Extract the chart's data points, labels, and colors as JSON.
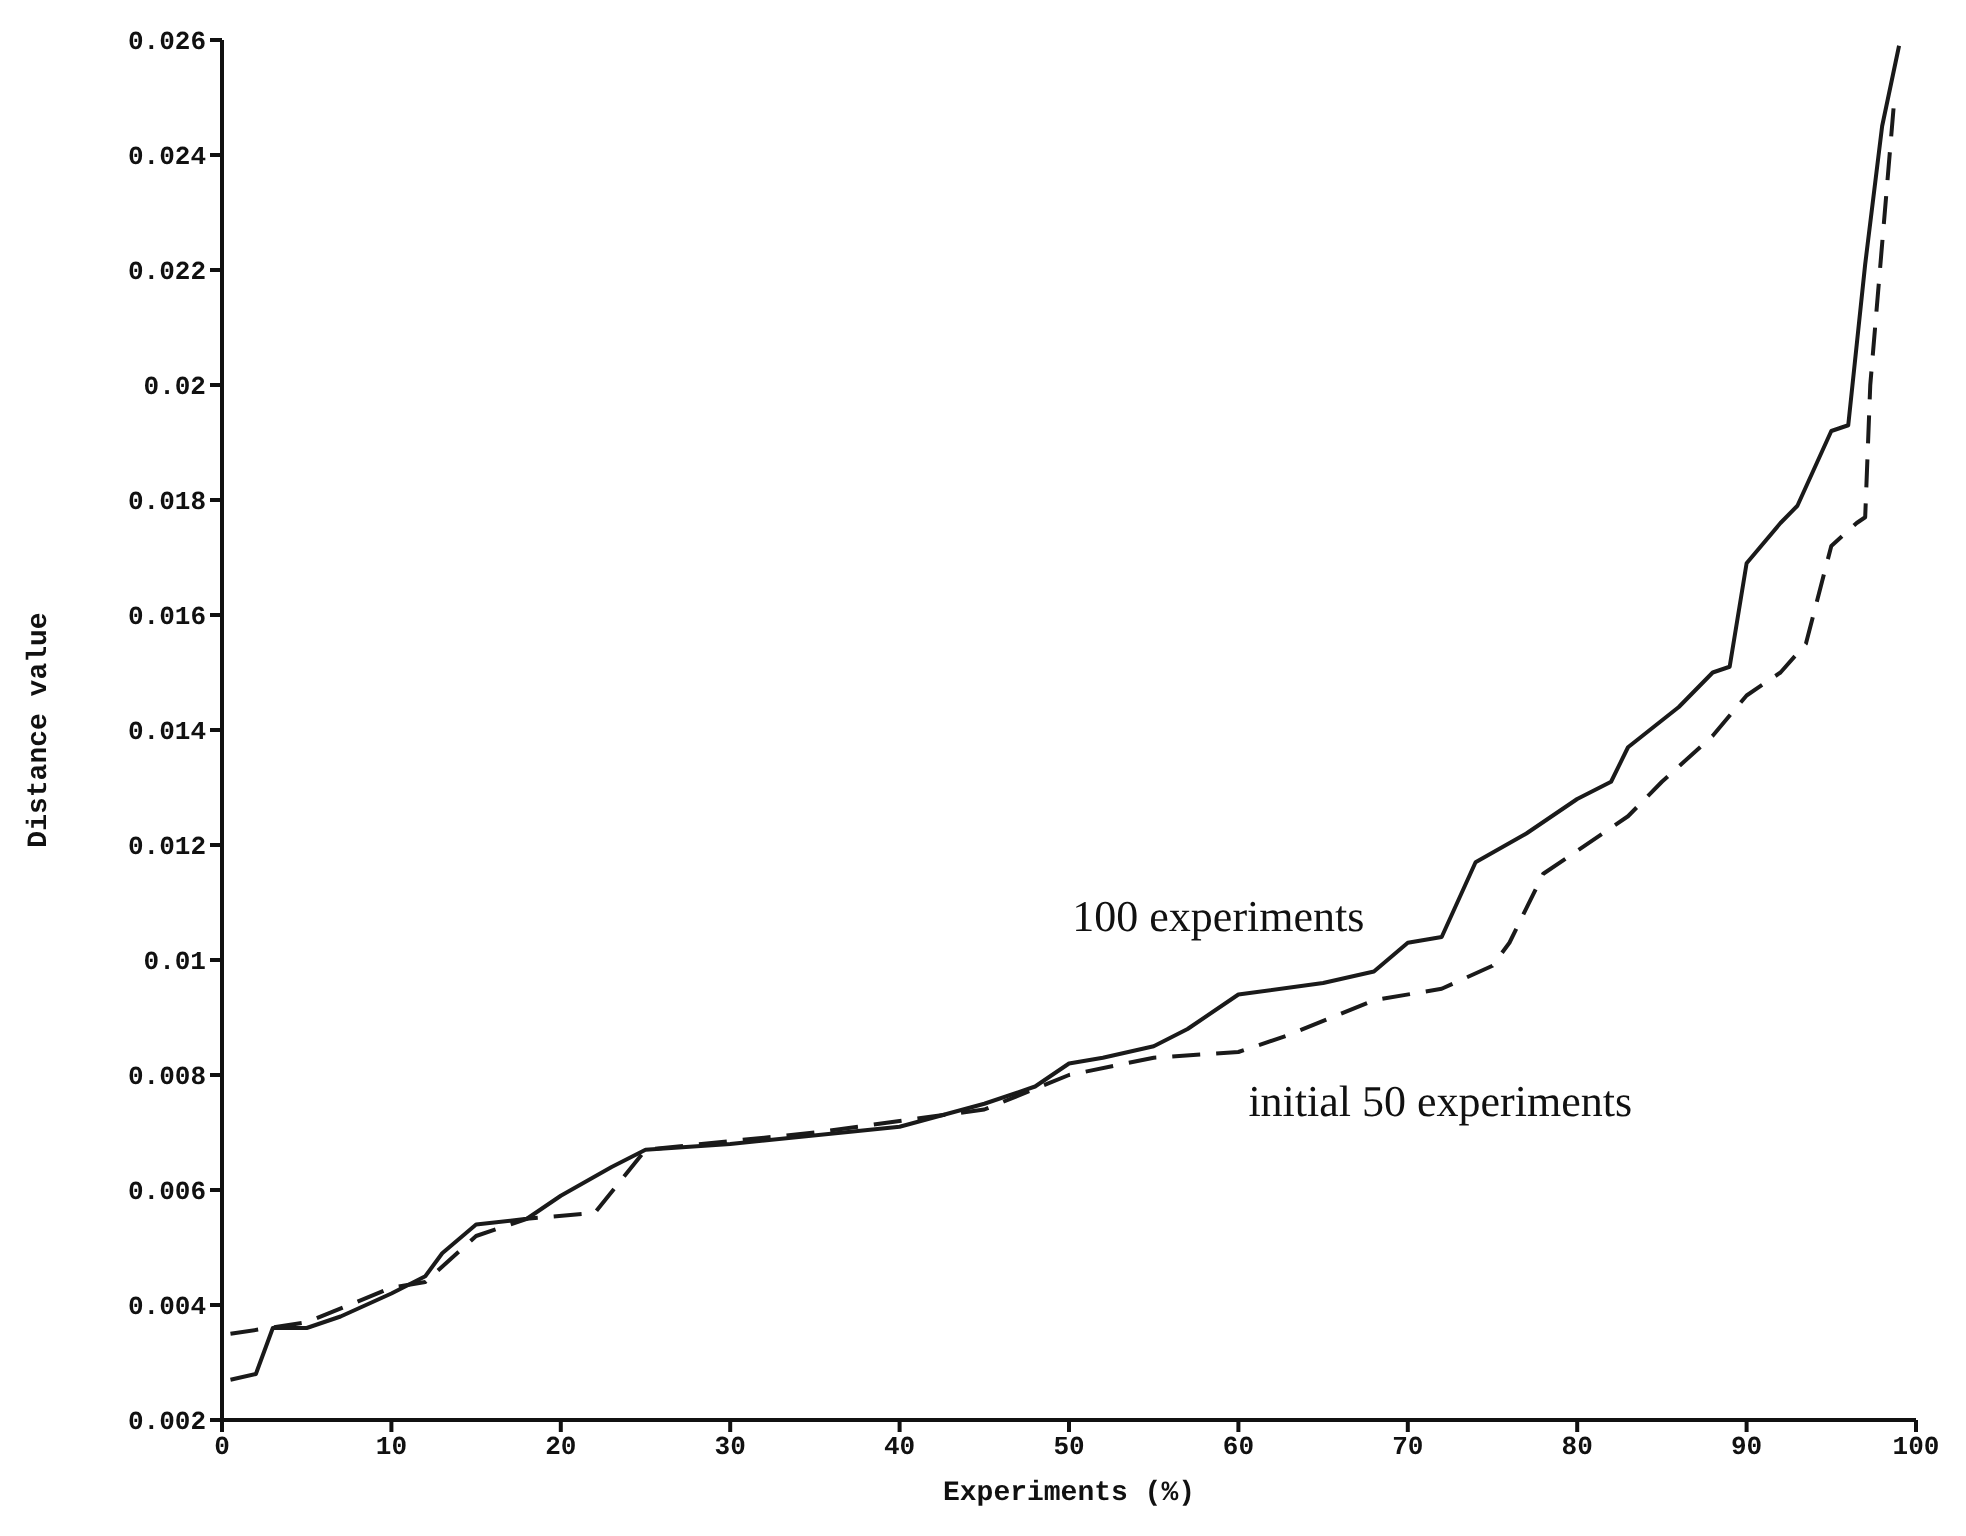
{
  "chart_data": {
    "type": "line",
    "xlabel": "Experiments (%)",
    "ylabel": "Distance value",
    "xlim": [
      0,
      100
    ],
    "xticks": [
      0,
      10,
      20,
      30,
      40,
      50,
      60,
      70,
      80,
      90,
      100
    ],
    "ylim": [
      0.002,
      0.026
    ],
    "yticks": [
      0.002,
      0.004,
      0.006,
      0.008,
      0.01,
      0.012,
      0.014,
      0.016,
      0.018,
      0.02,
      0.022,
      0.024,
      0.026
    ],
    "grid": false,
    "legend": false,
    "marker": "none",
    "series": [
      {
        "name": "100 experiments",
        "color": "#1a1a1a",
        "line_style": "solid",
        "x": [
          0.5,
          2,
          3,
          5,
          7,
          10,
          12,
          13,
          15,
          18,
          20,
          23,
          25,
          30,
          40,
          45,
          48,
          50,
          52,
          55,
          57,
          60,
          65,
          68,
          70,
          72,
          74,
          77,
          80,
          82,
          83,
          86,
          88,
          89,
          90,
          92,
          93,
          95,
          96,
          97,
          98,
          99
        ],
        "values": [
          0.0027,
          0.0028,
          0.0036,
          0.0036,
          0.0038,
          0.0042,
          0.0045,
          0.0049,
          0.0054,
          0.0055,
          0.0059,
          0.0064,
          0.0067,
          0.0068,
          0.0071,
          0.0075,
          0.0078,
          0.0082,
          0.0083,
          0.0085,
          0.0088,
          0.0094,
          0.0096,
          0.0098,
          0.0103,
          0.0104,
          0.0117,
          0.0122,
          0.0128,
          0.0131,
          0.0137,
          0.0144,
          0.015,
          0.0151,
          0.0169,
          0.0176,
          0.0179,
          0.0192,
          0.0193,
          0.0221,
          0.0245,
          0.0259
        ]
      },
      {
        "name": "initial 50 experiments",
        "color": "#1a1a1a",
        "line_style": "dashed",
        "x": [
          0.5,
          5,
          10,
          12,
          15,
          18,
          22,
          25,
          35,
          40,
          45,
          50,
          55,
          60,
          63,
          68,
          72,
          75,
          76,
          78,
          80,
          83,
          85,
          88,
          90,
          92,
          93.5,
          95,
          96.5,
          97,
          97.3,
          98.7
        ],
        "values": [
          0.0035,
          0.0037,
          0.0043,
          0.0044,
          0.0052,
          0.0055,
          0.0056,
          0.0067,
          0.007,
          0.0072,
          0.0074,
          0.008,
          0.0083,
          0.0084,
          0.0087,
          0.0093,
          0.0095,
          0.0099,
          0.0103,
          0.0115,
          0.0119,
          0.0125,
          0.0131,
          0.0139,
          0.0146,
          0.015,
          0.0155,
          0.0172,
          0.0176,
          0.0177,
          0.02,
          0.0249
        ]
      }
    ]
  }
}
